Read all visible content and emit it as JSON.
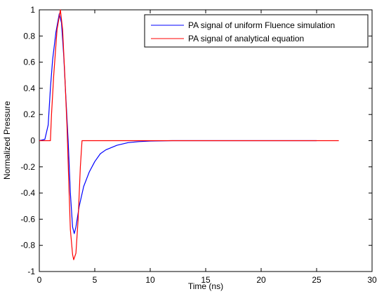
{
  "chart_data": {
    "type": "line",
    "xlabel": "Time (ns)",
    "ylabel": "Normalized Pressure",
    "xlim": [
      0,
      30
    ],
    "ylim": [
      -1,
      1
    ],
    "xticks": [
      0,
      5,
      10,
      15,
      20,
      25,
      30
    ],
    "yticks": [
      -1,
      -0.8,
      -0.6,
      -0.4,
      -0.2,
      0,
      0.2,
      0.4,
      0.6,
      0.8,
      1
    ],
    "xtick_labels": [
      "0",
      "5",
      "10",
      "15",
      "20",
      "25",
      "30"
    ],
    "ytick_labels": [
      "-1",
      "-0.8",
      "-0.6",
      "-0.4",
      "-0.2",
      "0",
      "0.2",
      "0.4",
      "0.6",
      "0.8",
      "1"
    ],
    "grid": false,
    "legend_position": "top-right",
    "series": [
      {
        "name": "PA signal of uniform Fluence simulation",
        "color": "#0000ff",
        "points": [
          [
            0,
            0
          ],
          [
            0.5,
            0.01
          ],
          [
            0.8,
            0.12
          ],
          [
            1.0,
            0.4
          ],
          [
            1.2,
            0.62
          ],
          [
            1.5,
            0.83
          ],
          [
            1.8,
            0.97
          ],
          [
            2.0,
            0.9
          ],
          [
            2.2,
            0.65
          ],
          [
            2.4,
            0.32
          ],
          [
            2.6,
            0.0
          ],
          [
            2.8,
            -0.4
          ],
          [
            3.0,
            -0.66
          ],
          [
            3.15,
            -0.71
          ],
          [
            3.3,
            -0.66
          ],
          [
            3.6,
            -0.5
          ],
          [
            4.0,
            -0.35
          ],
          [
            4.5,
            -0.24
          ],
          [
            5.0,
            -0.16
          ],
          [
            5.5,
            -0.1
          ],
          [
            6.0,
            -0.07
          ],
          [
            7.0,
            -0.035
          ],
          [
            8.0,
            -0.015
          ],
          [
            9.0,
            -0.007
          ],
          [
            10.0,
            -0.003
          ],
          [
            12.0,
            0
          ],
          [
            25.0,
            0
          ]
        ]
      },
      {
        "name": "PA signal of analytical equation",
        "color": "#ff0000",
        "points": [
          [
            0,
            0
          ],
          [
            1.0,
            0
          ],
          [
            1.1,
            0.2
          ],
          [
            1.3,
            0.5
          ],
          [
            1.6,
            0.85
          ],
          [
            1.9,
            1.0
          ],
          [
            2.1,
            0.85
          ],
          [
            2.3,
            0.5
          ],
          [
            2.5,
            0.1
          ],
          [
            2.65,
            -0.3
          ],
          [
            2.8,
            -0.68
          ],
          [
            3.0,
            -0.87
          ],
          [
            3.1,
            -0.91
          ],
          [
            3.3,
            -0.86
          ],
          [
            3.5,
            -0.6
          ],
          [
            3.7,
            -0.2
          ],
          [
            3.85,
            0
          ],
          [
            27.0,
            0
          ]
        ]
      }
    ]
  }
}
